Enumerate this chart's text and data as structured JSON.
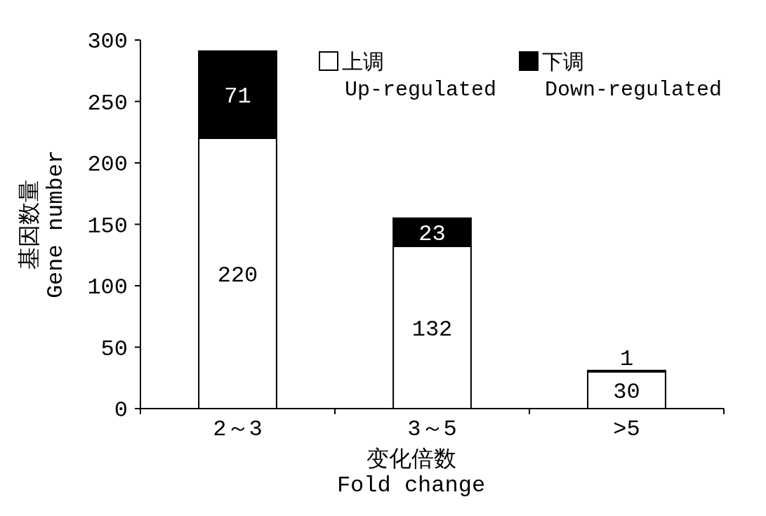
{
  "chart_data": {
    "type": "bar",
    "stacked": true,
    "categories": [
      "2～3",
      "3～5",
      ">5"
    ],
    "series": [
      {
        "name": "上调\nUp-regulated",
        "color": "#ffffff",
        "values": [
          220,
          132,
          30
        ]
      },
      {
        "name": "下调\nDown-regulated",
        "color": "#000000",
        "values": [
          71,
          23,
          1
        ]
      }
    ],
    "ylim": [
      0,
      300
    ],
    "yticks": [
      0,
      50,
      100,
      150,
      200,
      250,
      300
    ],
    "xlabel": "变化倍数\nFold change",
    "ylabel": "基因数量\nGene number",
    "data_labels": true,
    "legend": "top right"
  }
}
